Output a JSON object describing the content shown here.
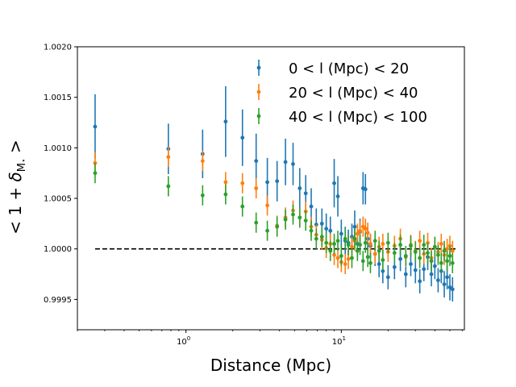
{
  "chart_data": {
    "type": "scatter",
    "title": "",
    "xlabel": "Distance (Mpc)",
    "ylabel_prefix": "< 1 + ",
    "ylabel_delta": "δ",
    "ylabel_sub": "M",
    "ylabel_star": "⋆",
    "ylabel_suffix": " >",
    "xscale": "log",
    "xlim": [
      0.2,
      62
    ],
    "ylim": [
      0.9992,
      1.002
    ],
    "yticks": [
      0.9995,
      1.0,
      1.0005,
      1.001,
      1.0015,
      1.002
    ],
    "ytick_labels": [
      "0.9995",
      "1.0000",
      "1.0005",
      "1.0010",
      "1.0015",
      "1.0020"
    ],
    "xticks_major": [
      1,
      10
    ],
    "xtick_base": "10",
    "xtick_exponents": [
      "0",
      "1"
    ],
    "reference_line": {
      "y": 1.0,
      "x_range": [
        0.26,
        55
      ],
      "style": "dashed",
      "color": "#000000"
    },
    "legend_position": "upper right",
    "series": [
      {
        "name": "0 < l (Mpc) < 20",
        "color": "#1f77b4",
        "x": [
          0.26,
          0.77,
          1.28,
          1.8,
          2.31,
          2.83,
          3.34,
          3.86,
          4.37,
          4.89,
          5.4,
          5.9,
          6.4,
          6.9,
          7.5,
          8.0,
          8.5,
          9.0,
          9.5,
          10.0,
          10.6,
          11.1,
          11.7,
          12.2,
          12.7,
          13.2,
          13.8,
          14.3,
          14.8,
          15.4,
          16.5,
          17.5,
          18.5,
          20.0,
          22.0,
          24.0,
          26.0,
          28.0,
          30.0,
          32.0,
          34.0,
          36.0,
          38.0,
          40.0,
          42.0,
          44.0,
          46.0,
          48.0,
          50.0,
          52.0
        ],
        "y": [
          1.00121,
          1.00099,
          1.00094,
          1.00126,
          1.0011,
          1.00087,
          1.00066,
          1.00067,
          1.00086,
          1.00084,
          1.0006,
          1.00055,
          1.00042,
          1.00024,
          1.00025,
          1.0002,
          1.00018,
          1.00065,
          1.00052,
          1.00015,
          1.00008,
          1.00006,
          1.00012,
          1.00022,
          1.00005,
          1.00017,
          1.0006,
          1.00059,
          1.0001,
          1.00003,
          0.99995,
          0.99985,
          0.99978,
          0.99972,
          0.99982,
          0.9999,
          0.99975,
          0.99985,
          0.99979,
          0.99968,
          0.9998,
          0.99992,
          0.99975,
          0.99983,
          0.99969,
          0.99978,
          0.99965,
          0.99972,
          0.99962,
          0.9996
        ],
        "err": [
          0.00032,
          0.00025,
          0.00024,
          0.00035,
          0.00028,
          0.00027,
          0.00024,
          0.0002,
          0.00023,
          0.00021,
          0.0002,
          0.00018,
          0.00018,
          0.00016,
          0.00015,
          0.00015,
          0.00014,
          0.00024,
          0.0002,
          0.00014,
          0.00014,
          0.00013,
          0.00013,
          0.00016,
          0.00013,
          0.00013,
          0.00016,
          0.00015,
          0.00012,
          0.00012,
          0.00012,
          0.00013,
          0.00012,
          0.00012,
          0.00012,
          0.00012,
          0.00013,
          0.00012,
          0.00013,
          0.00012,
          0.00012,
          0.00013,
          0.00012,
          0.00013,
          0.00012,
          0.00012,
          0.00013,
          0.00012,
          0.00013,
          0.00012
        ]
      },
      {
        "name": "20 < l (Mpc) < 40",
        "color": "#ff7f0e",
        "x": [
          0.26,
          0.77,
          1.28,
          1.8,
          2.31,
          2.83,
          3.34,
          3.86,
          4.37,
          4.89,
          5.4,
          5.9,
          6.4,
          6.9,
          7.5,
          8.0,
          8.5,
          9.0,
          9.5,
          10.0,
          10.6,
          11.1,
          11.7,
          12.2,
          12.7,
          13.2,
          13.8,
          14.3,
          14.8,
          15.4,
          16.5,
          17.5,
          18.5,
          20.0,
          22.0,
          24.0,
          26.0,
          28.0,
          30.0,
          32.0,
          34.0,
          36.0,
          38.0,
          40.0,
          42.0,
          44.0,
          46.0,
          48.0,
          50.0,
          52.0
        ],
        "y": [
          1.00085,
          1.00091,
          1.00087,
          1.00066,
          1.00065,
          1.0006,
          1.00043,
          1.00023,
          1.00031,
          1.00038,
          1.00031,
          1.00037,
          1.00022,
          1.00014,
          1.00009,
          1.00001,
          1.00005,
          0.99994,
          0.99991,
          0.99987,
          0.99985,
          0.9999,
          1.00002,
          1.00008,
          1.00015,
          1.00018,
          1.00022,
          1.0002,
          1.00016,
          1.00005,
          0.99995,
          1.00002,
          1.00005,
          0.99997,
          1.00003,
          1.0001,
          0.99992,
          1.00004,
          0.99998,
          1.00008,
          0.99995,
          1.00006,
          0.99991,
          1.00002,
          0.99997,
          1.00005,
          0.99994,
          1.0,
          1.00003,
          0.99998
        ],
        "err": [
          0.00011,
          0.0001,
          0.0001,
          0.0001,
          0.0001,
          0.0001,
          0.0001,
          0.0001,
          0.0001,
          0.0001,
          0.0001,
          0.0001,
          0.0001,
          0.0001,
          0.0001,
          0.0001,
          0.0001,
          0.0001,
          0.0001,
          0.0001,
          0.0001,
          0.0001,
          0.0001,
          0.0001,
          0.0001,
          0.0001,
          0.0001,
          0.0001,
          0.0001,
          0.0001,
          0.0001,
          0.0001,
          0.0001,
          0.0001,
          0.0001,
          0.0001,
          0.0001,
          0.0001,
          0.0001,
          0.0001,
          0.0001,
          0.0001,
          0.0001,
          0.0001,
          0.0001,
          0.0001,
          0.0001,
          0.0001,
          0.0001,
          0.0001
        ]
      },
      {
        "name": "40 < l (Mpc) < 100",
        "color": "#2ca02c",
        "x": [
          0.26,
          0.77,
          1.28,
          1.8,
          2.31,
          2.83,
          3.34,
          3.86,
          4.37,
          4.89,
          5.4,
          5.9,
          6.4,
          6.9,
          7.5,
          8.0,
          8.5,
          9.0,
          9.5,
          10.0,
          10.6,
          11.1,
          11.7,
          12.2,
          12.7,
          13.2,
          13.8,
          14.3,
          14.8,
          15.4,
          16.5,
          17.5,
          18.5,
          20.0,
          22.0,
          24.0,
          26.0,
          28.0,
          30.0,
          32.0,
          34.0,
          36.0,
          38.0,
          40.0,
          42.0,
          44.0,
          46.0,
          48.0,
          50.0,
          52.0
        ],
        "y": [
          1.00075,
          1.00062,
          1.00053,
          1.00054,
          1.00042,
          1.00026,
          1.00018,
          1.00022,
          1.00029,
          1.00034,
          1.00031,
          1.00028,
          1.00018,
          1.0001,
          1.00012,
          1.00006,
          0.99998,
          1.00005,
          1.00008,
          0.99993,
          1.0001,
          1.00004,
          0.99991,
          1.0001,
          0.99998,
          1.00004,
          0.99988,
          1.00006,
          0.99992,
          0.99986,
          1.00008,
          0.99998,
          0.99989,
          1.00006,
          0.99996,
          1.00004,
          0.99993,
          1.00003,
          0.99997,
          0.99991,
          1.00004,
          0.99996,
          0.99988,
          1.00002,
          0.99994,
          0.99986,
          0.99998,
          0.99988,
          0.99993,
          0.99986
        ],
        "err": [
          0.0001,
          0.0001,
          0.0001,
          0.0001,
          0.0001,
          0.0001,
          0.0001,
          0.0001,
          0.0001,
          0.0001,
          0.0001,
          0.0001,
          0.0001,
          0.0001,
          0.0001,
          0.0001,
          0.0001,
          0.0001,
          0.0001,
          0.0001,
          0.0001,
          0.0001,
          0.0001,
          0.0001,
          0.0001,
          0.0001,
          0.0001,
          0.0001,
          0.0001,
          0.0001,
          0.0001,
          0.0001,
          0.0001,
          0.0001,
          0.0001,
          0.0001,
          0.0001,
          0.0001,
          0.0001,
          0.0001,
          0.0001,
          0.0001,
          0.0001,
          0.0001,
          0.0001,
          0.0001,
          0.0001,
          0.0001,
          0.0001,
          0.0001
        ]
      }
    ]
  }
}
